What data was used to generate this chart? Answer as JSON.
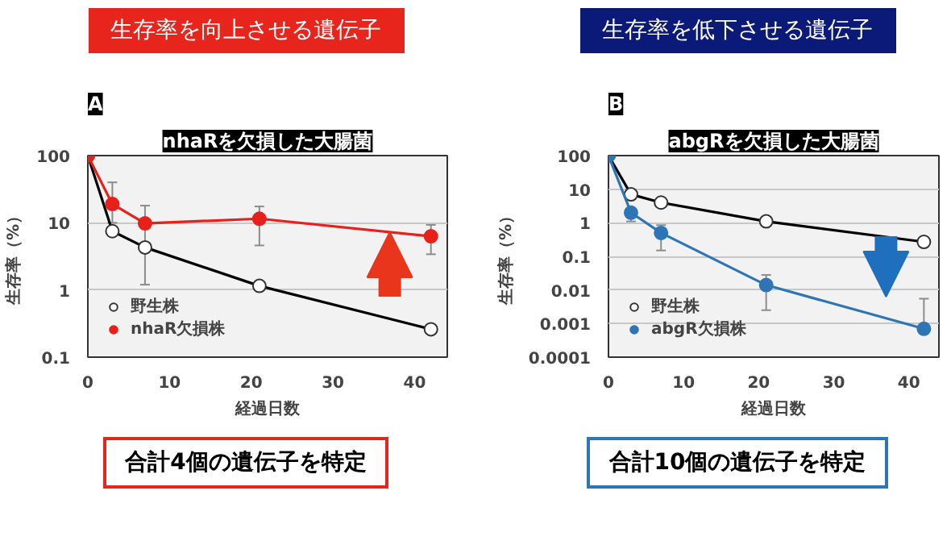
{
  "chart_data": [
    {
      "type": "line",
      "title": "nhaRを欠損した大腸菌",
      "xlabel": "経過日数",
      "ylabel": "生存率（%）",
      "log": "y",
      "xlim": [
        0,
        44
      ],
      "xticks": [
        0,
        10,
        20,
        30,
        40
      ],
      "ylim": [
        0.1,
        100
      ],
      "yticks": [
        0.1,
        1,
        10,
        100
      ],
      "grid": "y",
      "legend": "bottom left",
      "marker": "circle",
      "annotations": [
        "生存率を向上させる遺伝子",
        "A",
        "合計4個の遺伝子を特定"
      ],
      "series": [
        {
          "name": "野生株",
          "color": "#000000",
          "x": [
            0,
            3,
            7,
            21,
            42
          ],
          "values": [
            100,
            7.5,
            4.3,
            1.15,
            0.26
          ],
          "errors": [
            null,
            null,
            [
              1.2,
              18
            ],
            null,
            null
          ]
        },
        {
          "name": "nhaR欠損株",
          "color": "#e8201c",
          "x": [
            0,
            3,
            7,
            21,
            42
          ],
          "values": [
            100,
            19,
            9.8,
            11.5,
            6.3
          ],
          "errors": [
            null,
            [
              10,
              40
            ],
            null,
            [
              4.6,
              17.5
            ],
            [
              3.4,
              9.3
            ]
          ]
        }
      ]
    },
    {
      "type": "line",
      "title": "abgRを欠損した大腸菌",
      "xlabel": "経過日数",
      "ylabel": "生存率（%）",
      "log": "y",
      "xlim": [
        0,
        44
      ],
      "xticks": [
        0,
        10,
        20,
        30,
        40
      ],
      "ylim": [
        0.0001,
        100
      ],
      "yticks": [
        0.0001,
        0.001,
        0.01,
        0.1,
        1,
        10,
        100
      ],
      "grid": "y",
      "legend": "bottom left",
      "marker": "circle",
      "annotations": [
        "生存率を低下させる遺伝子",
        "B",
        "合計10個の遺伝子を特定"
      ],
      "series": [
        {
          "name": "野生株",
          "color": "#000000",
          "x": [
            0,
            3,
            7,
            21,
            42
          ],
          "values": [
            100,
            7,
            4,
            1.1,
            0.27
          ]
        },
        {
          "name": "abgR欠損株",
          "color": "#2e75b6",
          "x": [
            0,
            3,
            7,
            21,
            42
          ],
          "values": [
            100,
            2,
            0.5,
            0.014,
            0.0007
          ],
          "errors": [
            null,
            [
              1.1,
              2.5
            ],
            [
              0.15,
              0.85
            ],
            [
              0.0025,
              0.028
            ],
            [
              0.0007,
              0.0055
            ]
          ]
        }
      ]
    }
  ]
}
